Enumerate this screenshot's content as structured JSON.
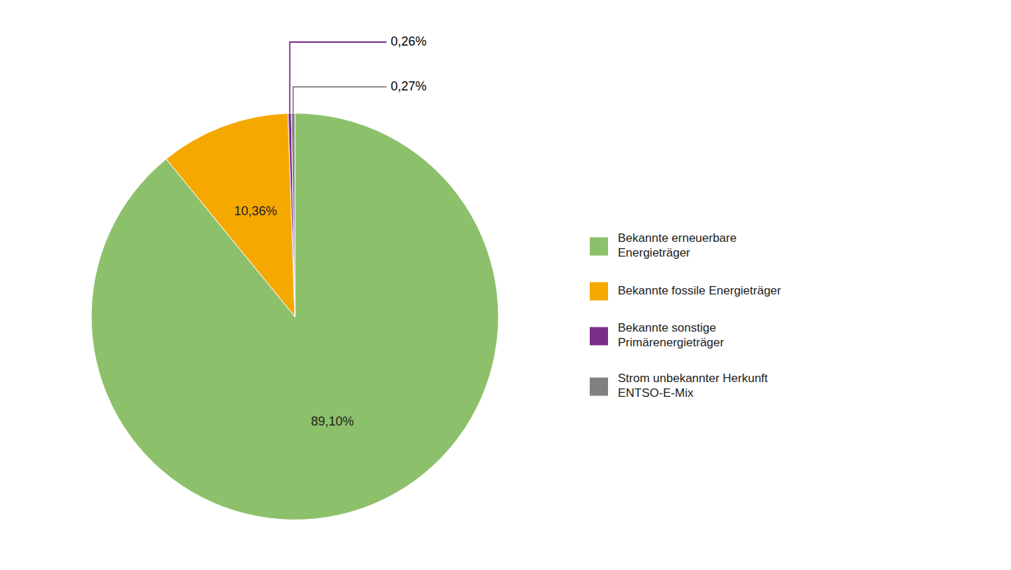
{
  "chart_data": {
    "type": "pie",
    "categories": [
      "Bekannte erneuerbare\nEnergieträger",
      "Bekannte fossile Energieträger",
      "Bekannte sonstige\nPrimärenergieträger",
      "Strom unbekannter Herkunft\nENTSO-E-Mix"
    ],
    "values": [
      89.1,
      10.36,
      0.26,
      0.27
    ],
    "value_labels": [
      "89,10%",
      "10,36%",
      "0,26%",
      "0,27%"
    ],
    "colors": [
      "#8dc06b",
      "#f5a800",
      "#7b2d8b",
      "#808080"
    ],
    "data_labels": true,
    "legend": "right"
  }
}
